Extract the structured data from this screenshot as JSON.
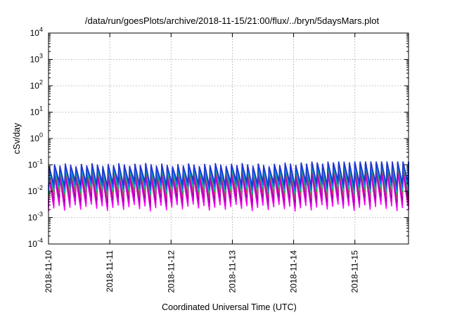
{
  "chart_data": {
    "type": "line",
    "title": "/data/run/goesPlots/archive/2018-11-15/21:00/flux/../bryn/5daysMars.plot",
    "xlabel": "Coordinated Universal Time (UTC)",
    "ylabel": "cSv/day",
    "y_scale": "log",
    "ylim": [
      0.0001,
      10000
    ],
    "y_ticks": [
      {
        "value": 0.0001,
        "base": "10",
        "exp": "-4"
      },
      {
        "value": 0.001,
        "base": "10",
        "exp": "-3"
      },
      {
        "value": 0.01,
        "base": "10",
        "exp": "-2"
      },
      {
        "value": 0.1,
        "base": "10",
        "exp": "-1"
      },
      {
        "value": 1,
        "base": "10",
        "exp": "0"
      },
      {
        "value": 10,
        "base": "10",
        "exp": "1"
      },
      {
        "value": 100,
        "base": "10",
        "exp": "2"
      },
      {
        "value": 1000,
        "base": "10",
        "exp": "3"
      },
      {
        "value": 10000,
        "base": "10",
        "exp": "4"
      }
    ],
    "xlim": [
      "2018-11-10T00:00",
      "2018-11-15T21:00"
    ],
    "x_ticks": [
      "2018-11-10",
      "2018-11-11",
      "2018-11-12",
      "2018-11-13",
      "2018-11-14",
      "2018-11-15"
    ],
    "grid": true,
    "approx_period_hours": 2.1,
    "series": [
      {
        "color": "#ff00ff",
        "peak": 0.035,
        "trough": 0.0025
      },
      {
        "color": "#cc00cc",
        "peak": 0.045,
        "trough": 0.0035
      },
      {
        "color": "#9900aa",
        "peak": 0.055,
        "trough": 0.005
      },
      {
        "color": "#cc3377",
        "peak": 0.062,
        "trough": 0.007
      },
      {
        "color": "#22aa44",
        "peak": 0.07,
        "trough": 0.01
      },
      {
        "color": "#00bbbb",
        "peak": 0.08,
        "trough": 0.012
      },
      {
        "color": "#0066ff",
        "peak": 0.09,
        "trough": 0.015
      },
      {
        "color": "#2233cc",
        "peak": 0.1,
        "trough": 0.02
      }
    ]
  }
}
